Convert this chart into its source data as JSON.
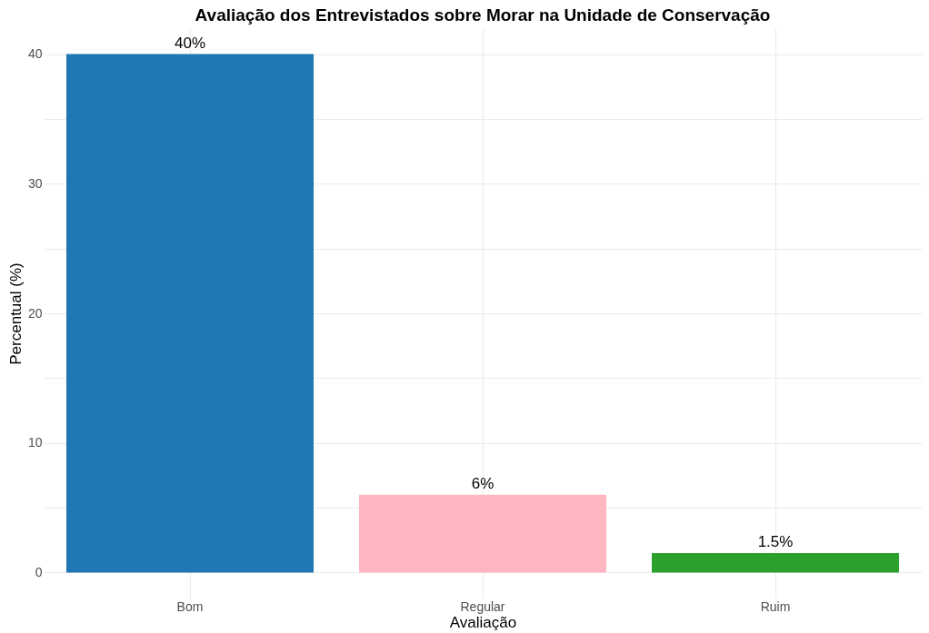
{
  "chart_data": {
    "type": "bar",
    "title": "Avaliação dos Entrevistados sobre Morar na Unidade de Conservação",
    "xlabel": "Avaliação",
    "ylabel": "Percentual (%)",
    "categories": [
      "Bom",
      "Regular",
      "Ruim"
    ],
    "values": [
      40,
      6,
      1.5
    ],
    "colors": [
      "#1f77b4",
      "#ffb6c1",
      "#2ca02c"
    ],
    "value_labels": [
      "40%",
      "6%",
      "1.5%"
    ],
    "ylim": [
      -2,
      42
    ],
    "yticks": [
      0,
      {
        "value": 5,
        "label": null
      },
      10,
      {
        "value": 15,
        "label": null
      },
      20,
      {
        "value": 25,
        "label": null
      },
      30,
      {
        "value": 35,
        "label": null
      },
      40
    ],
    "grid": true
  }
}
